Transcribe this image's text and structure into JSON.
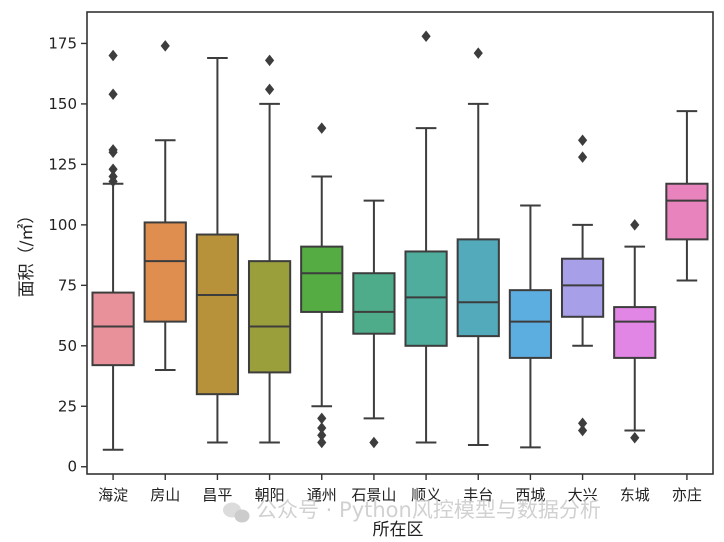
{
  "chart_data": {
    "type": "boxplot",
    "title": "",
    "xlabel": "所在区",
    "ylabel": "面积（/㎡）",
    "ylim": [
      -3,
      188
    ],
    "yticks": [
      0,
      25,
      50,
      75,
      100,
      125,
      150,
      175
    ],
    "grid": false,
    "categories": [
      "海淀",
      "房山",
      "昌平",
      "朝阳",
      "通州",
      "石景山",
      "顺义",
      "丰台",
      "西城",
      "大兴",
      "东城",
      "亦庄"
    ],
    "colors": [
      "#e8919a",
      "#e08e4f",
      "#b7923b",
      "#9a9e3b",
      "#55ac43",
      "#4fac8a",
      "#4ead9d",
      "#53aabb",
      "#5daee0",
      "#a89fe9",
      "#e286e6",
      "#e883bd"
    ],
    "boxes": [
      {
        "category": "海淀",
        "whisker_low": 7,
        "q1": 42,
        "median": 58,
        "q3": 72,
        "whisker_high": 117,
        "outliers": [
          118,
          120,
          123,
          130,
          131,
          154,
          170
        ]
      },
      {
        "category": "房山",
        "whisker_low": 40,
        "q1": 60,
        "median": 85,
        "q3": 101,
        "whisker_high": 135,
        "outliers": [
          174
        ]
      },
      {
        "category": "昌平",
        "whisker_low": 10,
        "q1": 30,
        "median": 71,
        "q3": 96,
        "whisker_high": 169,
        "outliers": []
      },
      {
        "category": "朝阳",
        "whisker_low": 10,
        "q1": 39,
        "median": 58,
        "q3": 85,
        "whisker_high": 150,
        "outliers": [
          156,
          168
        ]
      },
      {
        "category": "通州",
        "whisker_low": 25,
        "q1": 64,
        "median": 80,
        "q3": 91,
        "whisker_high": 120,
        "outliers": [
          10,
          13,
          16,
          20,
          140
        ]
      },
      {
        "category": "石景山",
        "whisker_low": 20,
        "q1": 55,
        "median": 64,
        "q3": 80,
        "whisker_high": 110,
        "outliers": [
          10
        ]
      },
      {
        "category": "顺义",
        "whisker_low": 10,
        "q1": 50,
        "median": 70,
        "q3": 89,
        "whisker_high": 140,
        "outliers": [
          178
        ]
      },
      {
        "category": "丰台",
        "whisker_low": 9,
        "q1": 54,
        "median": 68,
        "q3": 94,
        "whisker_high": 150,
        "outliers": [
          171
        ]
      },
      {
        "category": "西城",
        "whisker_low": 8,
        "q1": 45,
        "median": 60,
        "q3": 73,
        "whisker_high": 108,
        "outliers": []
      },
      {
        "category": "大兴",
        "whisker_low": 50,
        "q1": 62,
        "median": 75,
        "q3": 86,
        "whisker_high": 100,
        "outliers": [
          15,
          18,
          128,
          135
        ]
      },
      {
        "category": "东城",
        "whisker_low": 15,
        "q1": 45,
        "median": 60,
        "q3": 66,
        "whisker_high": 91,
        "outliers": [
          12,
          100
        ]
      },
      {
        "category": "亦庄",
        "whisker_low": 77,
        "q1": 94,
        "median": 110,
        "q3": 117,
        "whisker_high": 147,
        "outliers": []
      }
    ]
  },
  "watermark": {
    "text": "公众号 · Python风控模型与数据分析",
    "icon": "wechat-icon"
  }
}
